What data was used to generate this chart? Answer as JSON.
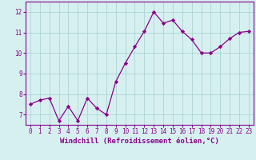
{
  "x": [
    0,
    1,
    2,
    3,
    4,
    5,
    6,
    7,
    8,
    9,
    10,
    11,
    12,
    13,
    14,
    15,
    16,
    17,
    18,
    19,
    20,
    21,
    22,
    23
  ],
  "y": [
    7.5,
    7.7,
    7.8,
    6.7,
    7.4,
    6.7,
    7.8,
    7.3,
    7.0,
    8.6,
    9.5,
    10.3,
    11.05,
    12.0,
    11.45,
    11.6,
    11.05,
    10.65,
    10.0,
    10.0,
    10.3,
    10.7,
    11.0,
    11.05
  ],
  "line_color": "#8b008b",
  "marker": "D",
  "marker_size": 2.2,
  "bg_color": "#d6f0f0",
  "grid_color": "#aed4d4",
  "xlabel": "Windchill (Refroidissement éolien,°C)",
  "xlim_min": -0.5,
  "xlim_max": 23.5,
  "ylim_min": 6.5,
  "ylim_max": 12.5,
  "yticks": [
    7,
    8,
    9,
    10,
    11,
    12
  ],
  "xticks": [
    0,
    1,
    2,
    3,
    4,
    5,
    6,
    7,
    8,
    9,
    10,
    11,
    12,
    13,
    14,
    15,
    16,
    17,
    18,
    19,
    20,
    21,
    22,
    23
  ],
  "tick_color": "#8b008b",
  "tick_size": 5.5,
  "xlabel_size": 6.5,
  "spine_color": "#8b008b",
  "linewidth": 0.9
}
